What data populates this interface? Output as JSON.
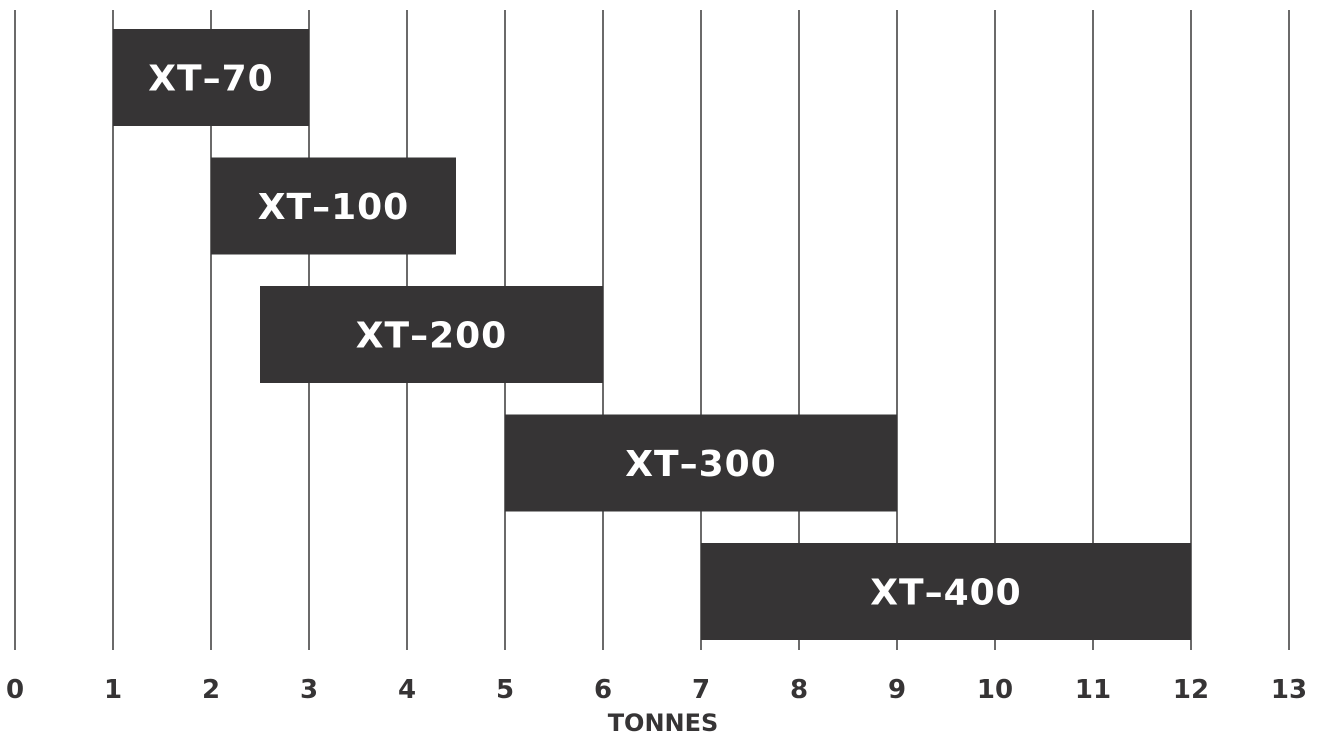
{
  "chart_data": {
    "type": "bar",
    "orientation": "horizontal-range",
    "xlabel": "TONNES",
    "xlim": [
      0,
      13
    ],
    "xticks": [
      "0",
      "1",
      "2",
      "3",
      "4",
      "5",
      "6",
      "7",
      "8",
      "9",
      "10",
      "11",
      "12",
      "13"
    ],
    "grid": true,
    "bars": [
      {
        "label": "XT–70",
        "start": 1,
        "end": 3
      },
      {
        "label": "XT–100",
        "start": 2,
        "end": 4.5
      },
      {
        "label": "XT–200",
        "start": 2.5,
        "end": 6
      },
      {
        "label": "XT–300",
        "start": 5,
        "end": 9
      },
      {
        "label": "XT–400",
        "start": 7,
        "end": 12
      }
    ],
    "colors": {
      "bar": "#363435",
      "bar_text": "#ffffff",
      "grid": "#3a3939",
      "text": "#363435"
    }
  }
}
